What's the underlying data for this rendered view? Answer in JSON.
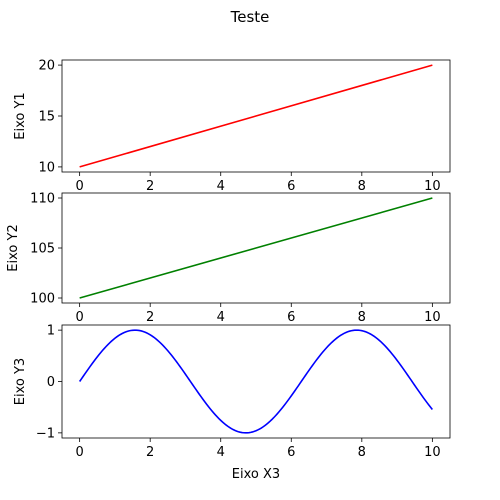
{
  "figure": {
    "title": "Teste"
  },
  "chart_data": [
    {
      "type": "line",
      "title": "",
      "xlabel": "",
      "ylabel": "Eixo Y1",
      "xlim": [
        -0.5,
        10.5
      ],
      "ylim": [
        9.5,
        20.5
      ],
      "xticks": [
        0,
        2,
        4,
        6,
        8,
        10
      ],
      "yticks": [
        10,
        15,
        20
      ],
      "grid": false,
      "series": [
        {
          "x": [
            0,
            10
          ],
          "y": [
            10,
            20
          ],
          "color": "#ff0000"
        }
      ]
    },
    {
      "type": "line",
      "title": "",
      "xlabel": "",
      "ylabel": "Eixo Y2",
      "xlim": [
        -0.5,
        10.5
      ],
      "ylim": [
        99.5,
        110.5
      ],
      "xticks": [
        0,
        2,
        4,
        6,
        8,
        10
      ],
      "yticks": [
        100,
        105,
        110
      ],
      "grid": false,
      "series": [
        {
          "x": [
            0,
            10
          ],
          "y": [
            100,
            110
          ],
          "color": "#008000"
        }
      ]
    },
    {
      "type": "line",
      "title": "",
      "xlabel": "Eixo X3",
      "ylabel": "Eixo Y3",
      "xlim": [
        -0.5,
        10.5
      ],
      "ylim": [
        -1.1,
        1.1
      ],
      "xticks": [
        0,
        2,
        4,
        6,
        8,
        10
      ],
      "yticks": [
        -1,
        0,
        1
      ],
      "grid": false,
      "series": [
        {
          "function": "sin",
          "x_range": [
            0,
            10
          ],
          "color": "#0000ff"
        }
      ]
    }
  ]
}
